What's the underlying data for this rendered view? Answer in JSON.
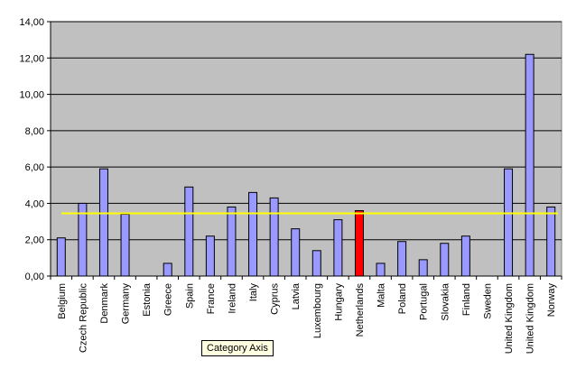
{
  "chart_data": {
    "type": "bar",
    "categories": [
      "Belgium",
      "Czech Republic",
      "Denmark",
      "Germany",
      "Estonia",
      "Greece",
      "Spain",
      "France",
      "Ireland",
      "Italy",
      "Cyprus",
      "Latvia",
      "Luxembourg",
      "Hungary",
      "Netherlands",
      "Malta",
      "Poland",
      "Portugal",
      "Slovakia",
      "Finland",
      "Sweden",
      "United Kingdom",
      "United Kingdom",
      "Norway"
    ],
    "values": [
      2.1,
      4.0,
      5.9,
      3.4,
      0.0,
      0.7,
      4.9,
      2.2,
      3.8,
      4.6,
      4.3,
      2.6,
      1.4,
      3.1,
      3.6,
      0.7,
      1.9,
      0.9,
      1.8,
      2.2,
      0.0,
      5.9,
      12.2,
      3.8
    ],
    "highlight": "Netherlands",
    "reference_line": 3.45,
    "ylim": [
      0,
      14
    ],
    "yticks": [
      "0,00",
      "2,00",
      "4,00",
      "6,00",
      "8,00",
      "10,00",
      "12,00",
      "14,00"
    ],
    "grid": true,
    "legend": "none",
    "colors": {
      "plot_bg": "#c0c0c0",
      "bar": "#9999ff",
      "highlight_bar": "#ff0000",
      "reference_line": "#ffff00",
      "gridline": "#000000"
    }
  },
  "tooltip": {
    "text": "Category Axis"
  }
}
